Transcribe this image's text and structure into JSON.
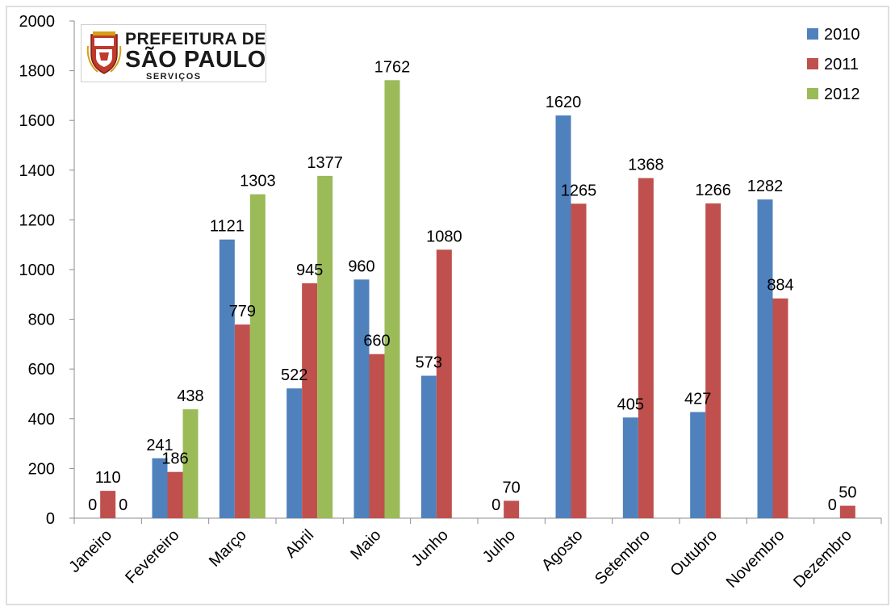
{
  "logo": {
    "line1": "PREFEITURA DE",
    "line2": "SÃO PAULO",
    "line3": "SERVIÇOS"
  },
  "chart_data": {
    "type": "bar",
    "title": "",
    "xlabel": "",
    "ylabel": "",
    "ylim": [
      0,
      2000
    ],
    "yticks": [
      0,
      200,
      400,
      600,
      800,
      1000,
      1200,
      1400,
      1600,
      1800,
      2000
    ],
    "grid": false,
    "legend_position": "top-right",
    "categories": [
      "Janeiro",
      "Fevereiro",
      "Março",
      "Abril",
      "Maio",
      "Junho",
      "Julho",
      "Agosto",
      "Setembro",
      "Outubro",
      "Novembro",
      "Dezembro"
    ],
    "series": [
      {
        "name": "2010",
        "color": "#4f81bd",
        "values": [
          0,
          241,
          1121,
          522,
          960,
          573,
          0,
          1620,
          405,
          427,
          1282,
          0
        ],
        "labels": [
          "0",
          "241",
          "1121",
          "522",
          "960",
          "573",
          "0",
          "1620",
          "405",
          "427",
          "1282",
          "0"
        ]
      },
      {
        "name": "2011",
        "color": "#c0504d",
        "values": [
          110,
          186,
          779,
          945,
          660,
          1080,
          70,
          1265,
          1368,
          1266,
          884,
          50
        ],
        "labels": [
          "110",
          "186",
          "779",
          "945",
          "660",
          "1080",
          "70",
          "1265",
          "1368",
          "1266",
          "884",
          "50"
        ]
      },
      {
        "name": "2012",
        "color": "#9bbb59",
        "values": [
          0,
          438,
          1303,
          1377,
          1762,
          null,
          null,
          null,
          null,
          null,
          null,
          null
        ],
        "labels": [
          "0",
          "438",
          "1303",
          "1377",
          "1762",
          null,
          null,
          null,
          null,
          null,
          null,
          null
        ]
      }
    ]
  }
}
